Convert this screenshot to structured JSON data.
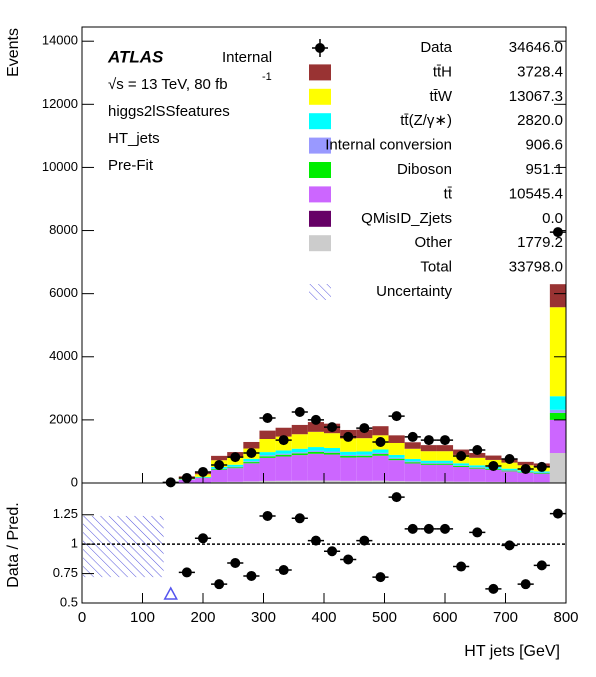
{
  "chart_data": {
    "type": "stacked_histogram",
    "ylabel": "Events",
    "xlabel": "HT jets [GeV]",
    "ratio_ylabel": "Data / Pred.",
    "annotations": {
      "atlas": "ATLAS",
      "status": "Internal",
      "energy": "√s = 13 TeV, 80 fb",
      "lumi_exp": "-1",
      "region": "higgs2lSSfeatures",
      "variable": "HT_jets",
      "fit": "Pre-Fit"
    },
    "bins": [
      0,
      26.667,
      53.333,
      80,
      106.667,
      133.333,
      160,
      186.667,
      213.333,
      240,
      266.667,
      293.333,
      320,
      346.667,
      373.333,
      400,
      426.667,
      453.333,
      480,
      506.667,
      533.333,
      560,
      586.667,
      613.333,
      640,
      666.667,
      693.333,
      720,
      746.667,
      773.333,
      800
    ],
    "xlim": [
      0,
      800
    ],
    "xticks": [
      0,
      100,
      200,
      300,
      400,
      500,
      600,
      700,
      800
    ],
    "ylim": [
      0,
      14450
    ],
    "yticks": [
      0,
      2000,
      4000,
      6000,
      8000,
      10000,
      12000,
      14000
    ],
    "ratio_ylim": [
      0.5,
      1.52
    ],
    "ratio_yticks": [
      0.5,
      0.75,
      1,
      1.25
    ],
    "ratio_reference": 1,
    "series": [
      {
        "name": "Other",
        "color": "#cccccc",
        "total_label": "1779.2",
        "values": [
          0,
          0,
          0,
          0,
          0,
          0,
          8,
          13,
          34,
          39,
          52,
          66,
          70,
          74,
          77,
          75,
          67,
          68,
          72,
          60,
          52,
          48,
          48,
          42,
          38,
          35,
          31,
          27,
          25,
          950
        ]
      },
      {
        "name": "QMisID_Zjets",
        "color": "#660066",
        "total_label": "0.0",
        "values": [
          0,
          0,
          0,
          0,
          0,
          0,
          0,
          0,
          0,
          0,
          0,
          0,
          0,
          0,
          0,
          0,
          0,
          0,
          0,
          0,
          0,
          0,
          0,
          0,
          0,
          0,
          0,
          0,
          0,
          0
        ]
      },
      {
        "name": "tt̄",
        "color": "#cc66ff",
        "total_label": "10545.4",
        "values": [
          0,
          0,
          0,
          0,
          0,
          0,
          92,
          145,
          378,
          431,
          572,
          730,
          770,
          810,
          849,
          827,
          739,
          744,
          792,
          664,
          568,
          528,
          528,
          466,
          418,
          383,
          339,
          295,
          273,
          1050
        ]
      },
      {
        "name": "Diboson",
        "color": "#00ee00",
        "total_label": "951.1",
        "values": [
          0,
          0,
          0,
          0,
          0,
          0,
          6,
          10,
          26,
          29,
          39,
          50,
          53,
          55,
          58,
          56,
          50,
          51,
          54,
          45,
          39,
          36,
          36,
          32,
          29,
          26,
          23,
          20,
          19,
          220
        ]
      },
      {
        "name": "Internal conversion",
        "color": "#9999ff",
        "total_label": "906.6",
        "values": [
          0,
          0,
          0,
          0,
          0,
          0,
          4,
          7,
          17,
          20,
          26,
          33,
          35,
          37,
          39,
          38,
          34,
          34,
          36,
          30,
          26,
          24,
          24,
          21,
          19,
          17,
          15,
          13,
          12,
          100
        ]
      },
      {
        "name": "tt̄(Z/γ∗)",
        "color": "#00ffff",
        "total_label": "2820.0",
        "values": [
          0,
          0,
          0,
          0,
          0,
          0,
          13,
          20,
          52,
          59,
          78,
          100,
          105,
          110,
          116,
          113,
          101,
          101,
          108,
          91,
          77,
          72,
          72,
          64,
          57,
          52,
          46,
          40,
          37,
          430
        ]
      },
      {
        "name": "tt̄W",
        "color": "#ffff00",
        "total_label": "13067.3",
        "values": [
          0,
          0,
          0,
          0,
          0,
          0,
          53,
          83,
          215,
          245,
          325,
          415,
          438,
          460,
          483,
          470,
          420,
          423,
          450,
          378,
          323,
          300,
          300,
          265,
          238,
          218,
          193,
          168,
          155,
          2820
        ]
      },
      {
        "name": "tt̄H",
        "color": "#993333",
        "total_label": "3728.4",
        "values": [
          0,
          0,
          0,
          0,
          0,
          0,
          34,
          53,
          138,
          157,
          208,
          266,
          280,
          294,
          309,
          301,
          269,
          270,
          288,
          242,
          206,
          192,
          192,
          170,
          152,
          139,
          123,
          107,
          99,
          730
        ]
      }
    ],
    "data": {
      "name": "Data",
      "total_label": "34646.0",
      "values": [
        0,
        0,
        0,
        0,
        0,
        20,
        160,
        350,
        570,
        820,
        950,
        2060,
        1360,
        2250,
        2000,
        1770,
        1460,
        1740,
        1300,
        2120,
        1460,
        1360,
        1360,
        855,
        1045,
        540,
        760,
        445,
        510,
        7950
      ]
    },
    "ratio": [
      null,
      null,
      null,
      null,
      null,
      0.3,
      0.76,
      1.05,
      0.66,
      0.84,
      0.73,
      1.24,
      0.78,
      1.22,
      1.03,
      0.94,
      0.87,
      1.03,
      0.72,
      1.4,
      1.13,
      1.13,
      1.13,
      0.81,
      1.1,
      0.62,
      0.99,
      0.66,
      0.82,
      1.26
    ],
    "ratio_band": {
      "x": [
        0,
        133.333
      ],
      "low": 0.72,
      "high": 1.24
    },
    "total": {
      "name": "Total",
      "label": "33798.0"
    },
    "uncertainty": {
      "name": "Uncertainty"
    }
  }
}
